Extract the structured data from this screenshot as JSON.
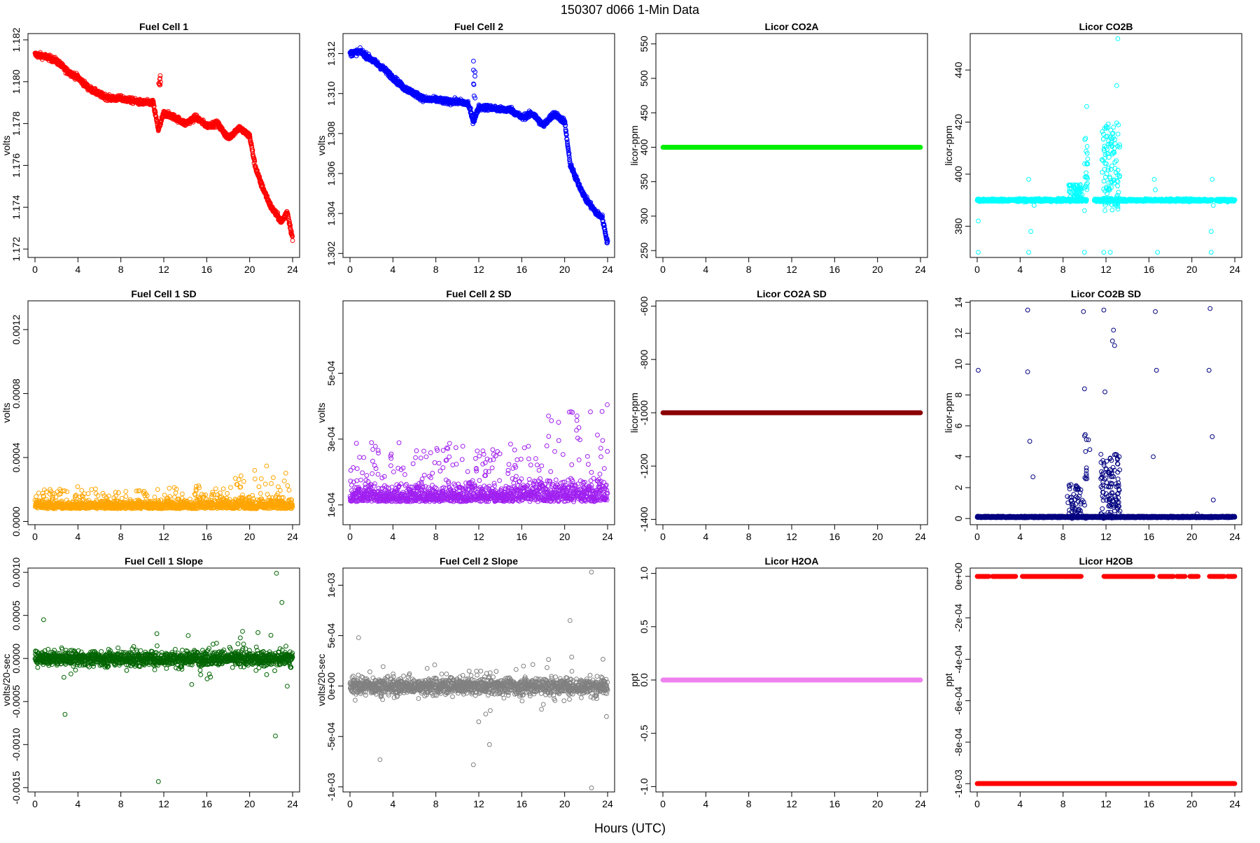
{
  "title": "150307   d066   1-Min Data",
  "xlabel": "Hours (UTC)",
  "colors": {
    "fc1": "#ff0000",
    "fc2": "#0000ff",
    "co2a": "#00ee00",
    "co2b": "#00ffff",
    "fc1sd": "#ffa500",
    "fc2sd": "#a020f0",
    "co2asd": "#8b0000",
    "co2bsd": "#000080",
    "fc1slope": "#006400",
    "fc2slope": "#808080",
    "h2oa": "#ee82ee",
    "h2ob": "#ff0000"
  },
  "chart_data": [
    {
      "type": "scatter",
      "title": "Fuel Cell 1",
      "ylabel": "volts",
      "xlim": [
        0,
        24
      ],
      "ylim": [
        1.1716,
        1.1823
      ],
      "xticks": [
        "0",
        "4",
        "8",
        "12",
        "16",
        "20",
        "24"
      ],
      "yticks": [
        1.172,
        1.174,
        1.176,
        1.178,
        1.18,
        1.182
      ],
      "yticklabels": [
        "1.172",
        "1.174",
        "1.176",
        "1.178",
        "1.180",
        "1.182"
      ],
      "color": "fc1",
      "profile": "fc1",
      "x": [
        0,
        1,
        2,
        3,
        4,
        5,
        6,
        7,
        8,
        9,
        10,
        11,
        11.5,
        12,
        13,
        14,
        15,
        16,
        17,
        18,
        19,
        20,
        20.5,
        21,
        22,
        23,
        23.5,
        24
      ],
      "y": [
        1.1813,
        1.1812,
        1.181,
        1.1805,
        1.1802,
        1.1797,
        1.1794,
        1.1792,
        1.1792,
        1.1791,
        1.179,
        1.179,
        1.1777,
        1.1785,
        1.1783,
        1.178,
        1.1783,
        1.1779,
        1.178,
        1.1773,
        1.1778,
        1.1774,
        1.176,
        1.1752,
        1.174,
        1.1733,
        1.1738,
        1.1725
      ]
    },
    {
      "type": "scatter",
      "title": "Fuel Cell 2",
      "ylabel": "volts",
      "xlim": [
        0,
        24
      ],
      "ylim": [
        1.3018,
        1.313
      ],
      "xticks": [
        "0",
        "4",
        "8",
        "12",
        "16",
        "20",
        "24"
      ],
      "yticks": [
        1.302,
        1.304,
        1.306,
        1.308,
        1.31,
        1.312
      ],
      "yticklabels": [
        "1.302",
        "1.304",
        "1.306",
        "1.308",
        "1.310",
        "1.312"
      ],
      "color": "fc2",
      "profile": "fc2",
      "x": [
        0,
        1,
        2,
        3,
        4,
        5,
        6,
        7,
        8,
        9,
        10,
        11,
        11.5,
        12,
        13,
        14,
        15,
        16,
        17,
        18,
        19,
        20,
        20.5,
        21,
        22,
        23,
        23.5,
        24
      ],
      "y": [
        1.312,
        1.3121,
        1.3117,
        1.3113,
        1.3108,
        1.3103,
        1.31,
        1.3097,
        1.3097,
        1.3096,
        1.3096,
        1.3095,
        1.3086,
        1.3093,
        1.3093,
        1.3092,
        1.3092,
        1.3088,
        1.309,
        1.3084,
        1.309,
        1.3086,
        1.3065,
        1.3058,
        1.3047,
        1.304,
        1.3038,
        1.3025
      ]
    },
    {
      "type": "scatter",
      "title": "Licor CO2A",
      "ylabel": "licor-ppm",
      "xlim": [
        0,
        24
      ],
      "ylim": [
        240,
        565
      ],
      "xticks": [
        "0",
        "4",
        "8",
        "12",
        "16",
        "20",
        "24"
      ],
      "yticks": [
        250,
        300,
        350,
        400,
        450,
        500,
        550
      ],
      "yticklabels": [
        "250",
        "300",
        "350",
        "400",
        "450",
        "500",
        "550"
      ],
      "color": "co2a",
      "profile": "const",
      "const_value": 400
    },
    {
      "type": "scatter",
      "title": "Licor CO2B",
      "ylabel": "licor-ppm",
      "xlim": [
        0,
        24
      ],
      "ylim": [
        368,
        454
      ],
      "xticks": [
        "0",
        "4",
        "8",
        "12",
        "16",
        "20",
        "24"
      ],
      "yticks": [
        380,
        400,
        420,
        440
      ],
      "yticklabels": [
        "380",
        "400",
        "420",
        "440"
      ],
      "color": "co2b",
      "profile": "co2b",
      "base_value": 390
    },
    {
      "type": "scatter",
      "title": "Fuel Cell 1 SD",
      "ylabel": "volts",
      "xlim": [
        0,
        24
      ],
      "ylim": [
        -2e-05,
        0.00138
      ],
      "xticks": [
        "0",
        "4",
        "8",
        "12",
        "16",
        "20",
        "24"
      ],
      "yticks": [
        0,
        0.0004,
        0.0008,
        0.0012
      ],
      "yticklabels": [
        "0.0000",
        "0.0004",
        "0.0008",
        "0.0012"
      ],
      "color": "fc1sd",
      "profile": "sd",
      "base_value": 8e-05,
      "spread": 3e-05
    },
    {
      "type": "scatter",
      "title": "Fuel Cell 2 SD",
      "ylabel": "volts",
      "xlim": [
        0,
        24
      ],
      "ylim": [
        4e-05,
        0.00072
      ],
      "xticks": [
        "0",
        "4",
        "8",
        "12",
        "16",
        "20",
        "24"
      ],
      "yticks": [
        0.0001,
        0.0003,
        0.0005
      ],
      "yticklabels": [
        "1e-04",
        "3e-04",
        "5e-04"
      ],
      "color": "fc2sd",
      "profile": "sd",
      "base_value": 0.00011,
      "spread": 3e-05
    },
    {
      "type": "scatter",
      "title": "Licor CO2A SD",
      "ylabel": "licor-ppm",
      "xlim": [
        0,
        24
      ],
      "ylim": [
        -1420,
        -580
      ],
      "xticks": [
        "0",
        "4",
        "8",
        "12",
        "16",
        "20",
        "24"
      ],
      "yticks": [
        -1400,
        -1200,
        -1000,
        -800,
        -600
      ],
      "yticklabels": [
        "-1400",
        "-1200",
        "-1000",
        "-800",
        "-600"
      ],
      "color": "co2asd",
      "profile": "const",
      "const_value": -1000
    },
    {
      "type": "scatter",
      "title": "Licor CO2B SD",
      "ylabel": "licor-ppm",
      "xlim": [
        0,
        24
      ],
      "ylim": [
        -0.4,
        14.1
      ],
      "xticks": [
        "0",
        "4",
        "8",
        "12",
        "16",
        "20",
        "24"
      ],
      "yticks": [
        0,
        2,
        4,
        6,
        8,
        10,
        12,
        14
      ],
      "yticklabels": [
        "0",
        "2",
        "4",
        "6",
        "8",
        "10",
        "12",
        "14"
      ],
      "color": "co2bsd",
      "profile": "co2bsd",
      "base_value": 0.05
    },
    {
      "type": "scatter",
      "title": "Fuel Cell 1 Slope",
      "ylabel": "volts/20-sec",
      "xlim": [
        0,
        24
      ],
      "ylim": [
        -0.00155,
        0.00105
      ],
      "xticks": [
        "0",
        "4",
        "8",
        "12",
        "16",
        "20",
        "24"
      ],
      "yticks": [
        -0.0015,
        -0.001,
        -0.0005,
        0,
        0.0005,
        0.001
      ],
      "yticklabels": [
        "-0.0015",
        "-0.0010",
        "-0.0005",
        "0.0000",
        "0.0005",
        "0.0010"
      ],
      "color": "fc1slope",
      "profile": "slope",
      "spread": 4e-05
    },
    {
      "type": "scatter",
      "title": "Fuel Cell 2 Slope",
      "ylabel": "volts/20-sec",
      "xlim": [
        0,
        24
      ],
      "ylim": [
        -0.00105,
        0.00117
      ],
      "xticks": [
        "0",
        "4",
        "8",
        "12",
        "16",
        "20",
        "24"
      ],
      "yticks": [
        -0.001,
        -0.0005,
        0,
        0.0005,
        0.001
      ],
      "yticklabels": [
        "-1e-03",
        "-5e-04",
        "0e+00",
        "5e-04",
        "1e-03"
      ],
      "color": "fc2slope",
      "profile": "slope",
      "spread": 4e-05
    },
    {
      "type": "scatter",
      "title": "Licor H2OA",
      "ylabel": "ppt",
      "xlim": [
        0,
        24
      ],
      "ylim": [
        -1.05,
        1.05
      ],
      "xticks": [
        "0",
        "4",
        "8",
        "12",
        "16",
        "20",
        "24"
      ],
      "yticks": [
        -1,
        -0.5,
        0,
        0.5,
        1
      ],
      "yticklabels": [
        "-1.0",
        "-0.5",
        "0.0",
        "0.5",
        "1.0"
      ],
      "color": "h2oa",
      "profile": "const",
      "const_value": 0
    },
    {
      "type": "scatter",
      "title": "Licor H2OB",
      "ylabel": "ppt",
      "xlim": [
        0,
        24
      ],
      "ylim": [
        -0.00104,
        4e-05
      ],
      "xticks": [
        "0",
        "4",
        "8",
        "12",
        "16",
        "20",
        "24"
      ],
      "yticks": [
        -0.001,
        -0.0008,
        -0.0006,
        -0.0004,
        -0.0002,
        0
      ],
      "yticklabels": [
        "-1e-03",
        "-8e-04",
        "-6e-04",
        "-4e-04",
        "-2e-04",
        "0e+00"
      ],
      "color": "h2ob",
      "profile": "h2ob",
      "values": [
        0,
        -0.001
      ]
    }
  ]
}
